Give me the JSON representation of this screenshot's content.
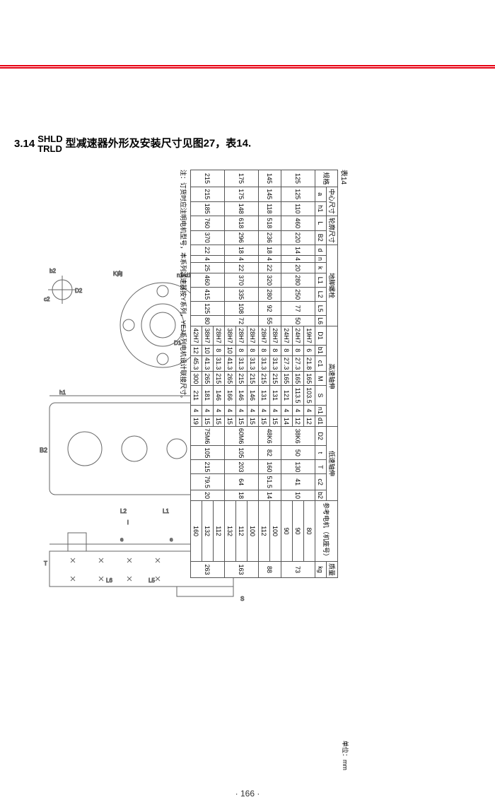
{
  "heading": {
    "section_number": "3.14",
    "type_top": "SHLD",
    "type_bottom": "TRLD",
    "title_rest": "型减速器外形及安装尺寸见图27，表14."
  },
  "figure_label": "图27",
  "page_number": "· 166 ·",
  "table": {
    "title": "表14",
    "unit_label": "单位：mm",
    "note": "注：订货时应注明电机型号，本系列减速器按Y系列，YEJ系列电机设计联接尺寸。",
    "group_headers": {
      "spec": "规格",
      "center": "中心尺寸",
      "outline": "轮廓尺寸",
      "foot_bolt": "地脚螺栓",
      "high_shaft": "高速轴伸",
      "low_shaft": "低速轴伸",
      "motor": "参考电机（机座号）",
      "mass": "质量"
    },
    "sub_headers": [
      "a",
      "h1",
      "L",
      "B2",
      "d",
      "n",
      "k",
      "L1",
      "L2",
      "L5",
      "L6",
      "D1",
      "b1",
      "c1",
      "M",
      "S",
      "n1",
      "d1",
      "D2",
      "t",
      "T",
      "c2",
      "b2",
      "",
      "kg"
    ],
    "rows": [
      {
        "spec": "125",
        "common": [
          "125",
          "110",
          "460",
          "220",
          "14",
          "4",
          "20",
          "280",
          "250",
          "77",
          "50"
        ],
        "high": [
          [
            "19H7",
            "6",
            "21.8",
            "165",
            "103.5",
            "4",
            "12"
          ],
          [
            "24H7",
            "8",
            "27.3",
            "165",
            "113.5",
            "4",
            "12"
          ],
          [
            "24H7",
            "8",
            "27.3",
            "165",
            "121",
            "4",
            "14"
          ]
        ],
        "low": [
          "38K6",
          "50",
          "130",
          "41",
          "10"
        ],
        "motor": [
          "80",
          "90",
          "90"
        ],
        "mass": "73"
      },
      {
        "spec": "145",
        "common": [
          "145",
          "118",
          "518",
          "236",
          "18",
          "4",
          "22",
          "320",
          "280",
          "92",
          "55"
        ],
        "high": [
          [
            "28H7",
            "8",
            "31.3",
            "215",
            "131",
            "4",
            "15"
          ],
          [
            "28H7",
            "8",
            "31.3",
            "215",
            "131",
            "4",
            "15"
          ]
        ],
        "low": [
          "48K6",
          "82",
          "160",
          "51.5",
          "14"
        ],
        "motor": [
          "100",
          "112"
        ],
        "mass": "88"
      },
      {
        "spec": "175",
        "common": [
          "175",
          "148",
          "618",
          "296",
          "18",
          "4",
          "22",
          "370",
          "335",
          "108",
          "72"
        ],
        "high": [
          [
            "28H7",
            "8",
            "31.3",
            "215",
            "146",
            "4",
            "15"
          ],
          [
            "28H7",
            "8",
            "31.3",
            "215",
            "146",
            "4",
            "15"
          ],
          [
            "38H7",
            "10",
            "41.3",
            "265",
            "166",
            "4",
            "15"
          ]
        ],
        "low": [
          "60M6",
          "105",
          "203",
          "64",
          "18"
        ],
        "motor": [
          "100",
          "112",
          "132"
        ],
        "mass": "163"
      },
      {
        "spec": "215",
        "common": [
          "215",
          "185",
          "760",
          "370",
          "22",
          "4",
          "25",
          "460",
          "415",
          "125",
          "80"
        ],
        "high": [
          [
            "28H7",
            "8",
            "31.3",
            "215",
            "146",
            "4",
            "15"
          ],
          [
            "38H7",
            "10",
            "41.3",
            "265",
            "181",
            "4",
            "15"
          ],
          [
            "42H7",
            "12",
            "45.3",
            "300",
            "211",
            "4",
            "19"
          ]
        ],
        "low": [
          "75M6",
          "105",
          "215",
          "79.5",
          "20"
        ],
        "motor": [
          "112",
          "132",
          "160"
        ],
        "mass": "263"
      }
    ]
  },
  "diagram_labels": [
    "b2",
    "c2",
    "D2",
    "K向",
    "n-d",
    "h1",
    "B2",
    "L2",
    "L1",
    "l",
    "n1·d1",
    "D1",
    "T",
    "K",
    "e",
    "e",
    "L6",
    "L5",
    "M",
    "S"
  ],
  "colors": {
    "rule": "#e60012",
    "line": "#555555",
    "text": "#000000",
    "bg": "#ffffff"
  }
}
